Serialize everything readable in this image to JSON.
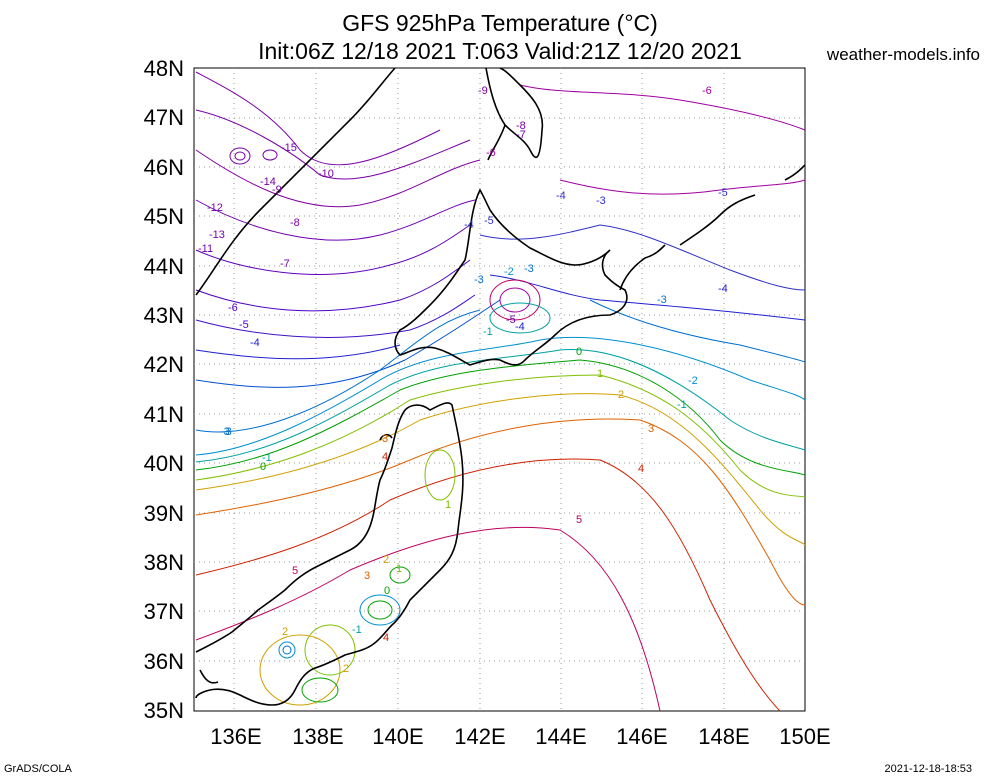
{
  "header": {
    "title": "GFS 925hPa Temperature (°C)",
    "subtitle": "Init:06Z 12/18 2021 T:063 Valid:21Z 12/20 2021",
    "site": "weather-models.info"
  },
  "footer": {
    "left": "GrADS/COLA",
    "right": "2021-12-18-18:53"
  },
  "axes": {
    "lat_labels": [
      "48N",
      "47N",
      "46N",
      "45N",
      "44N",
      "43N",
      "42N",
      "41N",
      "40N",
      "39N",
      "38N",
      "37N",
      "36N",
      "35N"
    ],
    "lon_labels": [
      "136E",
      "138E",
      "140E",
      "142E",
      "144E",
      "146E",
      "148E",
      "150E"
    ],
    "lat_range": [
      35,
      48
    ],
    "lon_range": [
      135,
      150
    ],
    "grid": "dotted"
  },
  "contour_labels": [
    {
      "text": "-9",
      "color": "#7a00a8"
    },
    {
      "text": "-8",
      "color": "#7a00a8"
    },
    {
      "text": "-7",
      "color": "#7a00a8"
    },
    {
      "text": "-6",
      "color": "#a000a0"
    },
    {
      "text": "-6",
      "color": "#a000a0"
    },
    {
      "text": "-15",
      "color": "#7a00a8"
    },
    {
      "text": "-14",
      "color": "#7a00a8"
    },
    {
      "text": "-10",
      "color": "#7a00a8"
    },
    {
      "text": "-12",
      "color": "#7a00a8"
    },
    {
      "text": "-13",
      "color": "#7a00a8"
    },
    {
      "text": "-11",
      "color": "#7a00a8"
    },
    {
      "text": "-9",
      "color": "#7a00a8"
    },
    {
      "text": "-8",
      "color": "#7a00a8"
    },
    {
      "text": "-7",
      "color": "#7a00a8"
    },
    {
      "text": "-6",
      "color": "#5000c0"
    },
    {
      "text": "-5",
      "color": "#5000c0"
    },
    {
      "text": "-4",
      "color": "#2020d0"
    },
    {
      "text": "-3",
      "color": "#0070d0"
    },
    {
      "text": "-4",
      "color": "#3030c8"
    },
    {
      "text": "-5",
      "color": "#3030c8"
    },
    {
      "text": "-4",
      "color": "#3030c8"
    },
    {
      "text": "-3",
      "color": "#3030c8"
    },
    {
      "text": "-5",
      "color": "#3030c8"
    },
    {
      "text": "-3",
      "color": "#0070d0"
    },
    {
      "text": "-2",
      "color": "#0090d0"
    },
    {
      "text": "-3",
      "color": "#0070d0"
    },
    {
      "text": "-5",
      "color": "#7000b0"
    },
    {
      "text": "-4",
      "color": "#2020d0"
    },
    {
      "text": "-3",
      "color": "#0070d0"
    },
    {
      "text": "-4",
      "color": "#2020d0"
    },
    {
      "text": "-1",
      "color": "#00a0a0"
    },
    {
      "text": "0",
      "color": "#00a000"
    },
    {
      "text": "1",
      "color": "#80c000"
    },
    {
      "text": "2",
      "color": "#d0a000"
    },
    {
      "text": "-2",
      "color": "#0090d0"
    },
    {
      "text": "-1",
      "color": "#00a0a0"
    },
    {
      "text": "3",
      "color": "#e06000"
    },
    {
      "text": "4",
      "color": "#d02000"
    },
    {
      "text": "5",
      "color": "#c00060"
    },
    {
      "text": "-3",
      "color": "#0070d0"
    },
    {
      "text": "-1",
      "color": "#00a0a0"
    },
    {
      "text": "0",
      "color": "#00a000"
    },
    {
      "text": "3",
      "color": "#e06000"
    },
    {
      "text": "4",
      "color": "#d02000"
    },
    {
      "text": "1",
      "color": "#80c000"
    },
    {
      "text": "5",
      "color": "#c00060"
    },
    {
      "text": "2",
      "color": "#d0a000"
    },
    {
      "text": "3",
      "color": "#e06000"
    },
    {
      "text": "1",
      "color": "#80c000"
    },
    {
      "text": "0",
      "color": "#00a000"
    },
    {
      "text": "2",
      "color": "#d0a000"
    },
    {
      "text": "-1",
      "color": "#00a0a0"
    },
    {
      "text": "4",
      "color": "#d02000"
    },
    {
      "text": "2",
      "color": "#d0a000"
    }
  ]
}
